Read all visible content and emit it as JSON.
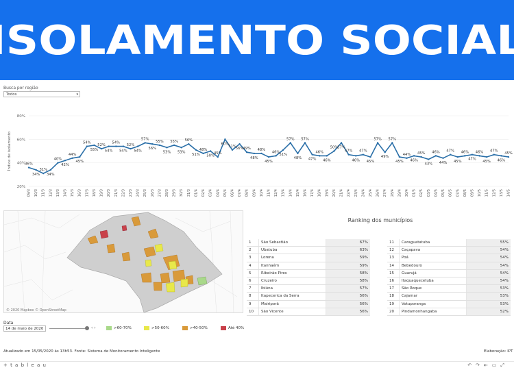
{
  "banner": {
    "title": "ISOLAMENTO SOCIAL"
  },
  "filters": {
    "region_label": "Busca por região",
    "region_value": "Todos",
    "date_label": "Data",
    "date_value": "14 de maio de 2020"
  },
  "chart_data": {
    "type": "line",
    "ylabel": "Índice de isolamento",
    "ylim": [
      20,
      80
    ],
    "yticks": [
      "80%",
      "60%",
      "40%",
      "20%"
    ],
    "x": [
      "09/3",
      "10/3",
      "11/3",
      "12/3",
      "13/3",
      "14/3",
      "15/3",
      "16/3",
      "17/3",
      "18/3",
      "19/3",
      "20/3",
      "21/3",
      "22/3",
      "23/3",
      "24/3",
      "25/3",
      "26/3",
      "27/3",
      "28/3",
      "29/3",
      "30/3",
      "31/3",
      "01/4",
      "02/4",
      "03/4",
      "04/4",
      "05/4",
      "06/4",
      "07/4",
      "08/4",
      "09/4",
      "10/4",
      "11/4",
      "12/4",
      "13/4",
      "14/4",
      "15/4",
      "16/4",
      "17/4",
      "18/4",
      "19/4",
      "20/4",
      "21/4",
      "22/4",
      "23/4",
      "24/4",
      "25/4",
      "26/4",
      "27/4",
      "28/4",
      "29/4",
      "30/4",
      "01/5",
      "02/5",
      "03/5",
      "04/5",
      "05/5",
      "06/5",
      "07/5",
      "08/5",
      "09/5",
      "10/5",
      "11/5",
      "12/5",
      "13/5",
      "14/5"
    ],
    "values": [
      36,
      34,
      31,
      34,
      40,
      42,
      44,
      45,
      54,
      55,
      52,
      54,
      54,
      54,
      52,
      54,
      57,
      56,
      55,
      53,
      55,
      53,
      56,
      51,
      48,
      50,
      45,
      60,
      51,
      56,
      49,
      48,
      48,
      45,
      46,
      51,
      57,
      48,
      57,
      47,
      46,
      46,
      50,
      57,
      47,
      46,
      47,
      45,
      57,
      49,
      57,
      45,
      44,
      46,
      45,
      43,
      46,
      44,
      47,
      45,
      46,
      47,
      46,
      45,
      47,
      46,
      45
    ]
  },
  "map": {
    "credit": "© 2020 Mapbox  © OpenStreetMap"
  },
  "legend": [
    {
      "label": ">60-70%",
      "color": "#a9d98a"
    },
    {
      "label": ">50-60%",
      "color": "#e8e84a"
    },
    {
      "label": ">40-50%",
      "color": "#d99a3a"
    },
    {
      "label": "Até 40%",
      "color": "#c9414a"
    }
  ],
  "ranking": {
    "title": "Ranking dos municípios",
    "left": [
      {
        "rank": "1",
        "name": "São Sebastião",
        "pct": "67%"
      },
      {
        "rank": "2",
        "name": "Ubatuba",
        "pct": "63%"
      },
      {
        "rank": "3",
        "name": "Lorena",
        "pct": "59%"
      },
      {
        "rank": "4",
        "name": "Itanhaém",
        "pct": "59%"
      },
      {
        "rank": "5",
        "name": "Ribeirão Pires",
        "pct": "58%"
      },
      {
        "rank": "6",
        "name": "Cruzeiro",
        "pct": "58%"
      },
      {
        "rank": "7",
        "name": "Ibiúna",
        "pct": "57%"
      },
      {
        "rank": "8",
        "name": "Itapecerica da Serra",
        "pct": "56%"
      },
      {
        "rank": "9",
        "name": "Mairiporã",
        "pct": "56%"
      },
      {
        "rank": "10",
        "name": "São Vicente",
        "pct": "56%"
      }
    ],
    "right": [
      {
        "rank": "11",
        "name": "Caraguatatuba",
        "pct": "55%"
      },
      {
        "rank": "12",
        "name": "Caçapava",
        "pct": "54%"
      },
      {
        "rank": "13",
        "name": "Poá",
        "pct": "54%"
      },
      {
        "rank": "14",
        "name": "Bebedouro",
        "pct": "54%"
      },
      {
        "rank": "15",
        "name": "Guarujá",
        "pct": "54%"
      },
      {
        "rank": "16",
        "name": "Itaquaquecetuba",
        "pct": "54%"
      },
      {
        "rank": "17",
        "name": "São Roque",
        "pct": "53%"
      },
      {
        "rank": "18",
        "name": "Cajamar",
        "pct": "53%"
      },
      {
        "rank": "19",
        "name": "Votuporanga",
        "pct": "53%"
      },
      {
        "rank": "20",
        "name": "Pindamonhangaba",
        "pct": "52%"
      }
    ]
  },
  "footer": {
    "text": "Atualizado em 15/05/2020 às 13h53. Fonte: Sistema de Monitoramento Inteligente",
    "credit": "Elaboração: IPT",
    "brand": "+ t a b l e a u"
  }
}
